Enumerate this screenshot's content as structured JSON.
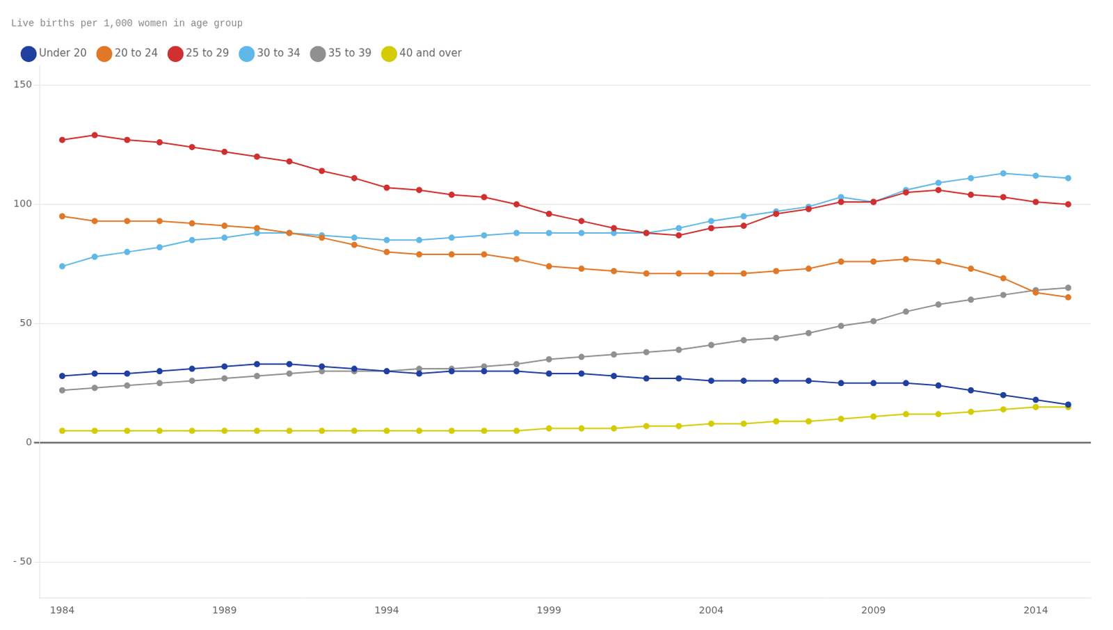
{
  "chart_data": {
    "type": "line",
    "subtitle": "Live births per 1,000 women in age group",
    "x": [
      1984,
      1985,
      1986,
      1987,
      1988,
      1989,
      1990,
      1991,
      1992,
      1993,
      1994,
      1995,
      1996,
      1997,
      1998,
      1999,
      2000,
      2001,
      2002,
      2003,
      2004,
      2005,
      2006,
      2007,
      2008,
      2009,
      2010,
      2011,
      2012,
      2013,
      2014,
      2015
    ],
    "series": [
      {
        "name": "Under 20",
        "color": "#2040a0",
        "values": [
          28,
          29,
          29,
          30,
          31,
          32,
          33,
          33,
          32,
          31,
          30,
          29,
          30,
          30,
          30,
          29,
          29,
          28,
          27,
          27,
          26,
          26,
          26,
          26,
          25,
          25,
          25,
          24,
          22,
          20,
          18,
          16
        ]
      },
      {
        "name": "20 to 24",
        "color": "#e07828",
        "values": [
          95,
          93,
          93,
          93,
          92,
          91,
          90,
          88,
          86,
          83,
          80,
          79,
          79,
          79,
          77,
          74,
          73,
          72,
          71,
          71,
          71,
          71,
          72,
          73,
          76,
          76,
          77,
          76,
          73,
          69,
          63,
          61
        ]
      },
      {
        "name": "25 to 29",
        "color": "#d03030",
        "values": [
          127,
          129,
          127,
          126,
          124,
          122,
          120,
          118,
          114,
          111,
          107,
          106,
          104,
          103,
          100,
          96,
          93,
          90,
          88,
          87,
          90,
          91,
          96,
          98,
          101,
          101,
          105,
          106,
          104,
          103,
          101,
          100
        ]
      },
      {
        "name": "30 to 34",
        "color": "#60b8e8",
        "values": [
          74,
          78,
          80,
          82,
          85,
          86,
          88,
          88,
          87,
          86,
          85,
          85,
          86,
          87,
          88,
          88,
          88,
          88,
          88,
          90,
          93,
          95,
          97,
          99,
          103,
          101,
          106,
          109,
          111,
          113,
          112,
          111
        ]
      },
      {
        "name": "35 to 39",
        "color": "#909090",
        "values": [
          22,
          23,
          24,
          25,
          26,
          27,
          28,
          29,
          30,
          30,
          30,
          31,
          31,
          32,
          33,
          35,
          36,
          37,
          38,
          39,
          41,
          43,
          44,
          46,
          49,
          51,
          55,
          58,
          60,
          62,
          64,
          65
        ]
      },
      {
        "name": "40 and over",
        "color": "#d4cc00",
        "values": [
          5,
          5,
          5,
          5,
          5,
          5,
          5,
          5,
          5,
          5,
          5,
          5,
          5,
          5,
          5,
          6,
          6,
          6,
          7,
          7,
          8,
          8,
          9,
          9,
          10,
          11,
          12,
          12,
          13,
          14,
          15,
          15
        ]
      }
    ],
    "xlim": [
      1983.3,
      2015.7
    ],
    "xticks": [
      1984,
      1989,
      1994,
      1999,
      2004,
      2009,
      2014
    ],
    "ylim": [
      -65,
      158
    ],
    "yticks": [
      {
        "value": -50,
        "label": "- 50"
      },
      0,
      50,
      100,
      150
    ],
    "grid": "y",
    "legend": "top",
    "marker": "circle"
  }
}
